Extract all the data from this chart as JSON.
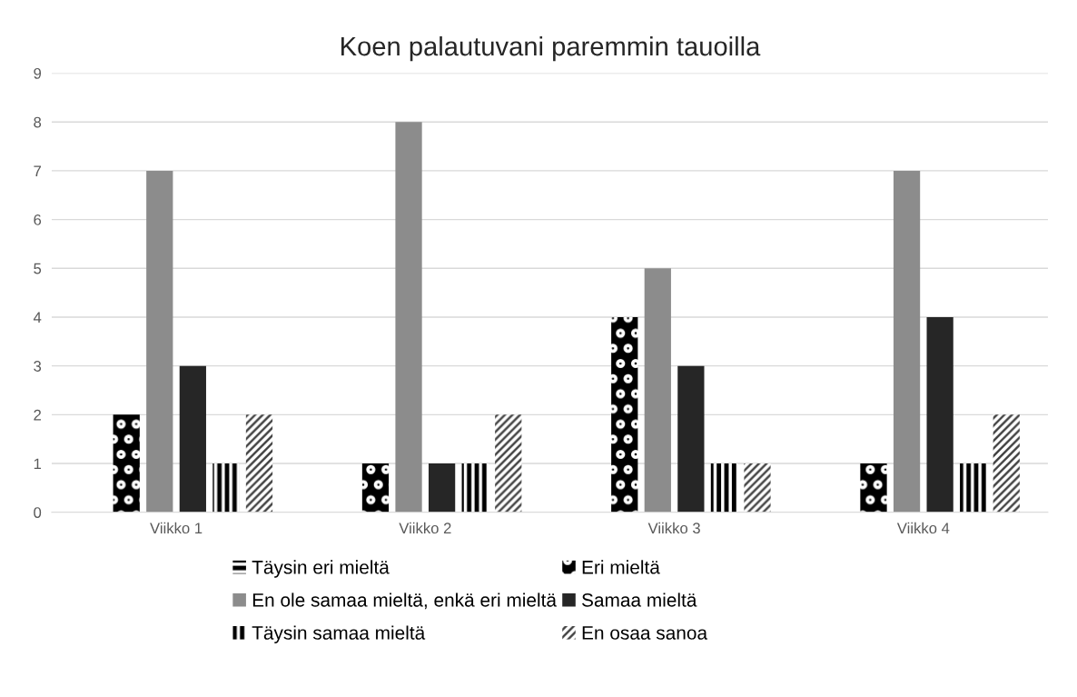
{
  "chart_data": {
    "type": "bar",
    "title": "Koen palautuvani paremmin tauoilla",
    "categories": [
      "Viikko 1",
      "Viikko 2",
      "Viikko 3",
      "Viikko 4"
    ],
    "series": [
      {
        "name": "Täysin eri mieltä",
        "color": "#000000",
        "values": [
          0,
          0,
          0,
          0
        ]
      },
      {
        "name": "Eri mieltä",
        "color": "#000000",
        "values": [
          2,
          1,
          4,
          1
        ]
      },
      {
        "name": "En ole samaa mieltä, enkä eri mieltä",
        "color": "#8c8c8c",
        "values": [
          7,
          8,
          5,
          7
        ]
      },
      {
        "name": "Samaa mieltä",
        "color": "#262626",
        "values": [
          3,
          1,
          3,
          4
        ]
      },
      {
        "name": "Täysin samaa mieltä",
        "color": "#000000",
        "values": [
          1,
          1,
          1,
          1
        ]
      },
      {
        "name": "En osaa sanoa",
        "color": "#404040",
        "values": [
          2,
          2,
          1,
          2
        ]
      }
    ],
    "ylim": [
      0,
      9
    ],
    "yticks": [
      0,
      1,
      2,
      3,
      4,
      5,
      6,
      7,
      8,
      9
    ],
    "grid": "y",
    "legend": "bottom"
  }
}
